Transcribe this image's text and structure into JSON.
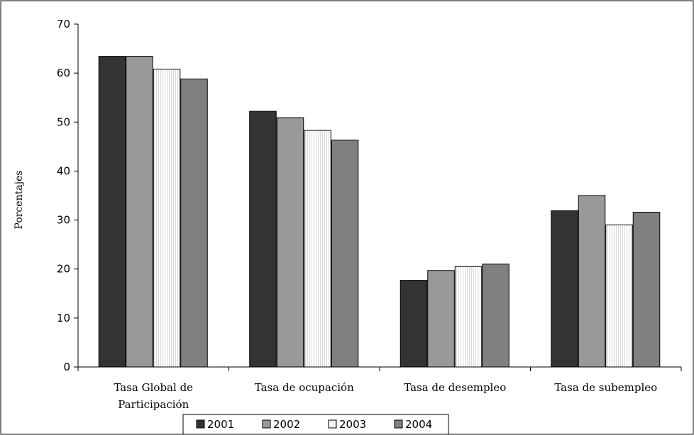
{
  "chart_data": {
    "type": "bar",
    "title": "",
    "xlabel": "",
    "ylabel": "Porcentajes",
    "ylim": [
      0,
      70
    ],
    "yticks": [
      0,
      10,
      20,
      30,
      40,
      50,
      60,
      70
    ],
    "grid": false,
    "legend_position": "bottom",
    "categories": [
      [
        "Tasa Global de",
        "Participación"
      ],
      [
        "Tasa de ocupación"
      ],
      [
        "Tasa de desempleo"
      ],
      [
        "Tasa de subempleo"
      ]
    ],
    "series": [
      {
        "name": "2001",
        "color": "#333333",
        "pattern": "solid",
        "values": [
          63.4,
          52.2,
          17.7,
          31.9
        ]
      },
      {
        "name": "2002",
        "color": "#999999",
        "pattern": "solid",
        "values": [
          63.4,
          50.9,
          19.7,
          35.0
        ]
      },
      {
        "name": "2003",
        "color": "#ffffff",
        "pattern": "vertical-lines",
        "values": [
          60.8,
          48.3,
          20.5,
          29.0
        ]
      },
      {
        "name": "2004",
        "color": "#808080",
        "pattern": "solid",
        "values": [
          58.8,
          46.3,
          21.0,
          31.6
        ]
      }
    ]
  }
}
